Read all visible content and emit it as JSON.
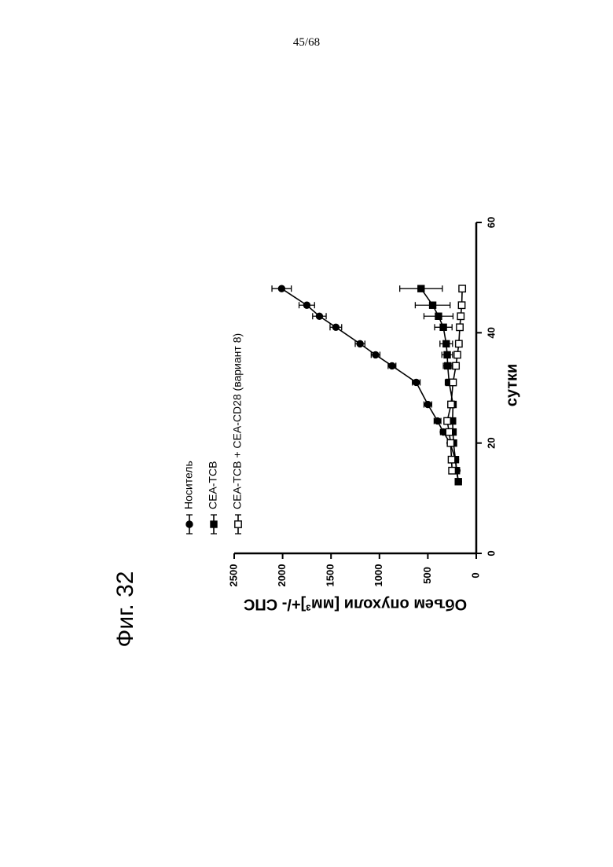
{
  "page": {
    "number": "45/68",
    "figure_caption": "Фиг. 32"
  },
  "chart_data": {
    "type": "line",
    "xlabel": "сутки",
    "ylabel": "Объем опухоли [мм³]+/- СПС",
    "xlim": [
      0,
      60
    ],
    "ylim": [
      0,
      2500
    ],
    "x_ticks": [
      "0",
      "20",
      "40",
      "60"
    ],
    "y_ticks": [
      "0",
      "500",
      "1000",
      "1500",
      "2000",
      "2500"
    ],
    "grid": false,
    "legend_position": "top-left",
    "series": [
      {
        "name": "Носитель",
        "marker": "filled-circle",
        "x": [
          13,
          15,
          17,
          20,
          22,
          24,
          27,
          31,
          34,
          36,
          38,
          41,
          43,
          45,
          48
        ],
        "y": [
          185,
          200,
          215,
          270,
          340,
          400,
          500,
          620,
          870,
          1040,
          1200,
          1450,
          1620,
          1750,
          2010
        ],
        "err": [
          15,
          15,
          20,
          25,
          30,
          35,
          40,
          40,
          40,
          45,
          50,
          60,
          70,
          80,
          100
        ]
      },
      {
        "name": "CEA-TCB",
        "marker": "filled-square",
        "x": [
          13,
          15,
          17,
          20,
          22,
          24,
          27,
          31,
          34,
          36,
          38,
          41,
          43,
          45,
          48
        ],
        "y": [
          185,
          205,
          215,
          235,
          240,
          245,
          240,
          280,
          295,
          300,
          310,
          340,
          390,
          450,
          570
        ],
        "err": [
          15,
          15,
          20,
          25,
          25,
          25,
          30,
          40,
          45,
          55,
          65,
          90,
          150,
          180,
          220
        ]
      },
      {
        "name": "CEA-TCB + CEA-CD28 (вариант 8)",
        "marker": "open-square",
        "x": [
          15,
          17,
          20,
          22,
          24,
          27,
          31,
          34,
          36,
          38,
          41,
          43,
          45,
          48
        ],
        "y": [
          250,
          255,
          265,
          280,
          300,
          260,
          240,
          210,
          195,
          180,
          170,
          160,
          150,
          145
        ],
        "err": [
          15,
          15,
          20,
          20,
          25,
          25,
          25,
          25,
          25,
          20,
          20,
          15,
          15,
          15
        ]
      }
    ]
  }
}
